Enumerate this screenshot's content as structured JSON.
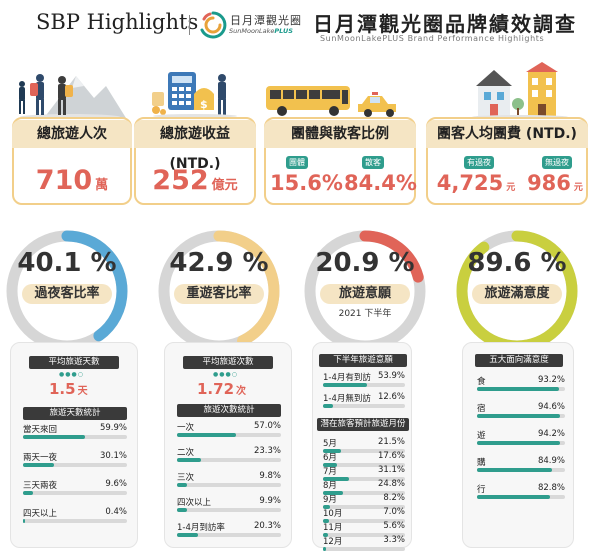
{
  "header": {
    "brand_en": "SBP Highlights",
    "logo_zh": "日月潭觀光圈",
    "logo_en_main": "SunMoonLake",
    "logo_en_plus": "PLUS",
    "title_zh": "日月潭觀光圈品牌績效調查",
    "title_en": "SunMoonLakePLUS Brand Performance Highlights"
  },
  "kpis": [
    {
      "label": "總旅遊人次",
      "value": "710",
      "unit": "萬"
    },
    {
      "label": "總旅遊收益 (NTD.)",
      "value": "252",
      "unit": "億元"
    },
    {
      "label": "團體與散客比例",
      "tag1": "團體",
      "value1": "15.6%",
      "tag2": "散客",
      "value2": "84.4%"
    },
    {
      "label": "團客人均團費 (NTD.)",
      "tag1": "有過夜",
      "value1": "4,725",
      "unit1": "元",
      "tag2": "無過夜",
      "value2": "986",
      "unit2": "元"
    }
  ],
  "gauges": [
    {
      "pct": "40.1 %",
      "value": 40.1,
      "label": "過夜客比率",
      "color": "#5aa9d6",
      "sub": ""
    },
    {
      "pct": "42.9 %",
      "value": 42.9,
      "label": "重遊客比率",
      "color": "#f2cf8a",
      "sub": ""
    },
    {
      "pct": "20.9 %",
      "value": 20.9,
      "label": "旅遊意願",
      "color": "#e06458",
      "sub": "2021 下半年"
    },
    {
      "pct": "89.6 %",
      "value": 89.6,
      "label": "旅遊滿意度",
      "color": "#c9cf3f",
      "sub": ""
    }
  ],
  "panel1": {
    "avg_title": "平均旅遊天數",
    "avg_value": "1.5",
    "avg_unit": "天",
    "stats_title": "旅遊天數統計",
    "rows": [
      {
        "label": "當天來回",
        "pct": "59.9%",
        "value": 59.9
      },
      {
        "label": "兩天一夜",
        "pct": "30.1%",
        "value": 30.1
      },
      {
        "label": "三天兩夜",
        "pct": "9.6%",
        "value": 9.6
      },
      {
        "label": "四天以上",
        "pct": "0.4%",
        "value": 0.4
      }
    ]
  },
  "panel2": {
    "avg_title": "平均旅遊次數",
    "avg_value": "1.72",
    "avg_unit": "次",
    "stats_title": "旅遊次數統計",
    "rows": [
      {
        "label": "一次",
        "pct": "57.0%",
        "value": 57.0
      },
      {
        "label": "二次",
        "pct": "23.3%",
        "value": 23.3
      },
      {
        "label": "三次",
        "pct": "9.8%",
        "value": 9.8
      },
      {
        "label": "四次以上",
        "pct": "9.9%",
        "value": 9.9
      },
      {
        "label": "1-4月到訪率",
        "pct": "20.3%",
        "value": 20.3
      }
    ]
  },
  "panel3": {
    "title": "下半年旅遊意願",
    "rows": [
      {
        "label": "1-4月有到訪",
        "pct": "53.9%",
        "value": 53.9
      },
      {
        "label": "1-4月無到訪",
        "pct": "12.6%",
        "value": 12.6
      }
    ],
    "months_title": "潛在旅客預計旅遊月份",
    "months": [
      {
        "label": "5月",
        "pct": "21.5%",
        "value": 21.5
      },
      {
        "label": "6月",
        "pct": "17.6%",
        "value": 17.6
      },
      {
        "label": "7月",
        "pct": "31.1%",
        "value": 31.1
      },
      {
        "label": "8月",
        "pct": "24.8%",
        "value": 24.8
      },
      {
        "label": "9月",
        "pct": "8.2%",
        "value": 8.2
      },
      {
        "label": "10月",
        "pct": "7.0%",
        "value": 7.0
      },
      {
        "label": "11月",
        "pct": "5.6%",
        "value": 5.6
      },
      {
        "label": "12月",
        "pct": "3.3%",
        "value": 3.3
      }
    ]
  },
  "panel4": {
    "title": "五大面向滿意度",
    "rows": [
      {
        "label": "食",
        "pct": "93.2%",
        "value": 93.2
      },
      {
        "label": "宿",
        "pct": "94.6%",
        "value": 94.6
      },
      {
        "label": "遊",
        "pct": "94.2%",
        "value": 94.2
      },
      {
        "label": "購",
        "pct": "84.9%",
        "value": 84.9
      },
      {
        "label": "行",
        "pct": "82.8%",
        "value": 82.8
      }
    ]
  }
}
